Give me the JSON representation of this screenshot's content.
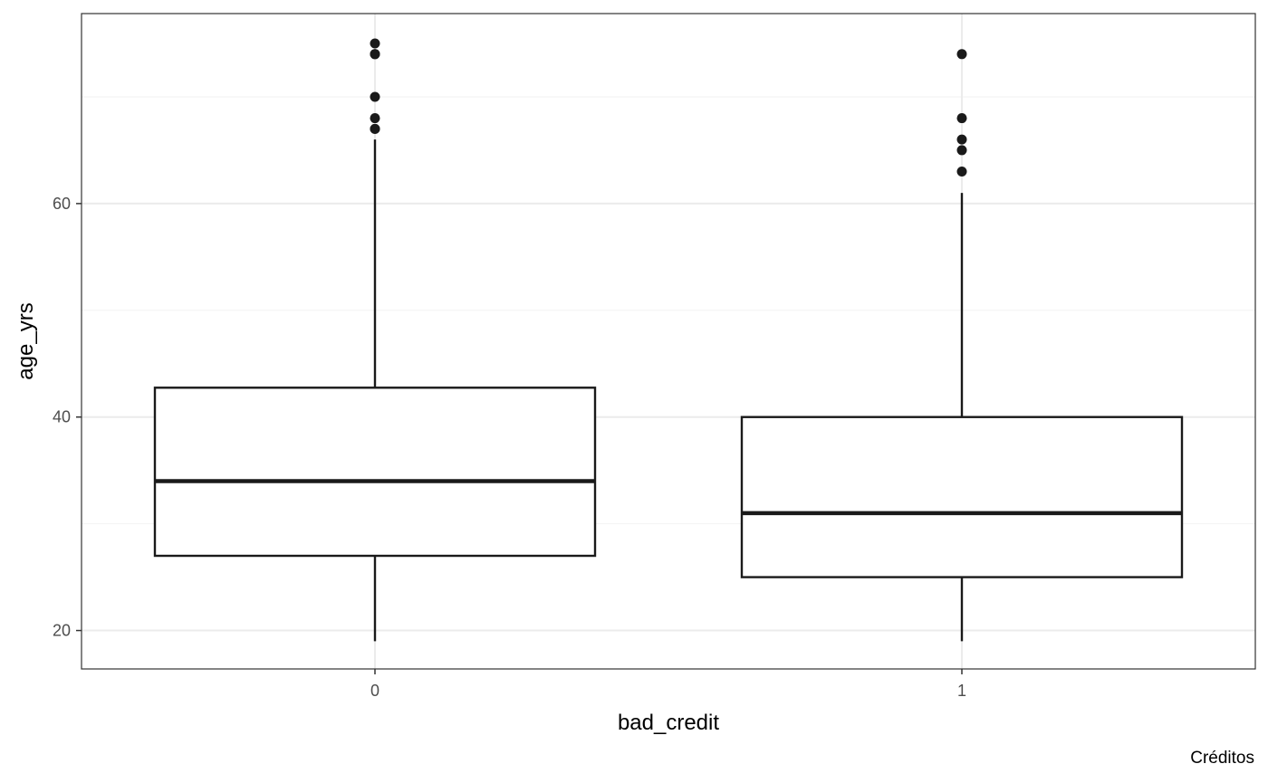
{
  "chart_data": {
    "type": "boxplot",
    "title": "",
    "xlabel": "bad_credit",
    "ylabel": "age_yrs",
    "caption": "Créditos",
    "categories": [
      "0",
      "1"
    ],
    "y_ticks": [
      20,
      40,
      60
    ],
    "y_tick_labels": [
      "20",
      "40",
      "60"
    ],
    "y_minor_gridlines": [
      30,
      50,
      70
    ],
    "ylim": [
      16.4,
      77.8
    ],
    "grid": true,
    "boxes": [
      {
        "category": "0",
        "whisker_low": 19,
        "q1": 27,
        "median": 34,
        "q3": 42.75,
        "whisker_high": 66,
        "outliers": [
          67,
          67,
          68,
          70,
          74,
          74,
          75
        ]
      },
      {
        "category": "1",
        "whisker_low": 19,
        "q1": 25,
        "median": 31,
        "q3": 40,
        "whisker_high": 61,
        "outliers": [
          63,
          65,
          66,
          68,
          74
        ]
      }
    ],
    "colors": {
      "box_stroke": "#1a1a1a",
      "outlier_fill": "#1a1a1a",
      "major_grid": "#ebebeb",
      "minor_grid": "#f2f2f2",
      "panel_border": "#333333",
      "tick_label": "#4d4d4d",
      "axis_title": "#000000"
    }
  }
}
